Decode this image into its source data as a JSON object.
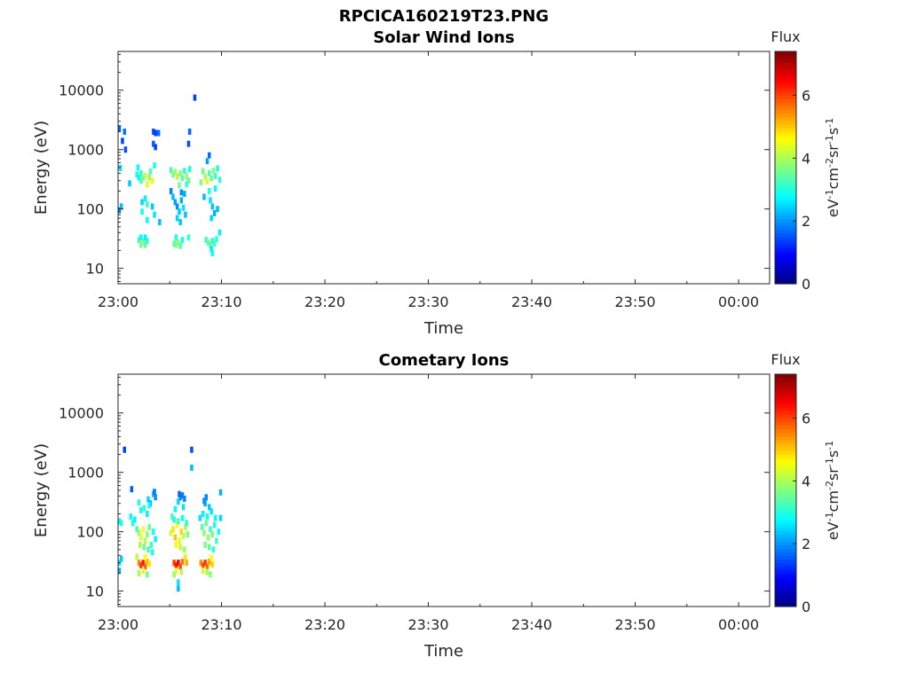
{
  "figure_title": "RPCICA160219T23.PNG",
  "colors": {
    "axis": "#262626",
    "background": "#ffffff"
  },
  "colorbar": {
    "label": "Flux",
    "ticks": [
      0,
      2,
      4,
      6
    ],
    "range": [
      0,
      7.4
    ],
    "colormap": "jet"
  },
  "chart_data": [
    {
      "type": "heatmap",
      "title": "Solar Wind Ions",
      "xlabel": "Time",
      "ylabel": "Energy (eV)",
      "xtick_labels": [
        "23:00",
        "23:10",
        "23:20",
        "23:30",
        "23:40",
        "23:50",
        "00:00"
      ],
      "xlim_minutes": [
        0,
        63
      ],
      "ylog": true,
      "ylim": [
        5.5,
        45000
      ],
      "ytick_labels": [
        "10",
        "100",
        "1000",
        "10000"
      ],
      "yticks": [
        10,
        100,
        1000,
        10000
      ],
      "grid": false,
      "cells": [
        [
          0.1,
          2300,
          1.6
        ],
        [
          0.6,
          2000,
          1.8
        ],
        [
          0.4,
          1400,
          1.4
        ],
        [
          0.7,
          1000,
          1.5
        ],
        [
          0.2,
          490,
          2.6
        ],
        [
          0.3,
          110,
          2.3
        ],
        [
          0.1,
          95,
          2.0
        ],
        [
          1.1,
          270,
          2.4
        ],
        [
          1.9,
          500,
          2.8
        ],
        [
          1.8,
          380,
          3.0
        ],
        [
          2.0,
          340,
          2.7
        ],
        [
          2.2,
          300,
          3.3
        ],
        [
          2.2,
          400,
          3.1
        ],
        [
          2.4,
          330,
          3.6
        ],
        [
          2.6,
          360,
          4.2
        ],
        [
          2.8,
          260,
          4.4
        ],
        [
          3.0,
          340,
          3.8
        ],
        [
          3.1,
          430,
          3.4
        ],
        [
          3.3,
          300,
          4.7
        ],
        [
          3.5,
          540,
          3.0
        ],
        [
          3.4,
          2000,
          1.5
        ],
        [
          3.6,
          1900,
          1.3
        ],
        [
          3.4,
          1250,
          1.6
        ],
        [
          3.6,
          1100,
          1.4
        ],
        [
          3.9,
          1900,
          1.7
        ],
        [
          2.3,
          130,
          2.5
        ],
        [
          2.3,
          90,
          2.9
        ],
        [
          2.6,
          150,
          2.7
        ],
        [
          2.8,
          120,
          3.2
        ],
        [
          2.8,
          65,
          2.8
        ],
        [
          3.3,
          110,
          2.4
        ],
        [
          3.5,
          80,
          2.6
        ],
        [
          2.0,
          30,
          3.2
        ],
        [
          2.2,
          25,
          3.6
        ],
        [
          2.4,
          28,
          3.9
        ],
        [
          2.6,
          25,
          3.5
        ],
        [
          2.8,
          29,
          3.1
        ],
        [
          2.6,
          33,
          2.7
        ],
        [
          2.2,
          33,
          2.8
        ],
        [
          4.0,
          60,
          2.3
        ],
        [
          5.1,
          450,
          3.3
        ],
        [
          5.3,
          380,
          3.7
        ],
        [
          5.5,
          420,
          3.9
        ],
        [
          5.7,
          350,
          4.1
        ],
        [
          6.0,
          400,
          3.7
        ],
        [
          6.2,
          330,
          3.4
        ],
        [
          6.4,
          440,
          3.1
        ],
        [
          6.6,
          360,
          3.9
        ],
        [
          6.8,
          300,
          3.5
        ],
        [
          6.9,
          470,
          3.0
        ],
        [
          6.6,
          260,
          3.2
        ],
        [
          5.9,
          250,
          3.6
        ],
        [
          5.3,
          160,
          2.3
        ],
        [
          5.5,
          130,
          2.1
        ],
        [
          5.7,
          110,
          2.0
        ],
        [
          5.9,
          90,
          2.4
        ],
        [
          6.1,
          140,
          2.2
        ],
        [
          6.3,
          105,
          2.6
        ],
        [
          6.5,
          80,
          2.3
        ],
        [
          5.7,
          70,
          2.5
        ],
        [
          6.0,
          60,
          2.4
        ],
        [
          6.4,
          180,
          2.2
        ],
        [
          5.1,
          200,
          1.9
        ],
        [
          6.1,
          190,
          2.0
        ],
        [
          5.4,
          26,
          3.3
        ],
        [
          5.6,
          25,
          3.7
        ],
        [
          5.8,
          27,
          3.9
        ],
        [
          6.0,
          24,
          3.4
        ],
        [
          6.2,
          30,
          2.9
        ],
        [
          5.6,
          33,
          3.0
        ],
        [
          6.8,
          33,
          3.2
        ],
        [
          6.9,
          2000,
          1.7
        ],
        [
          6.8,
          1250,
          1.5
        ],
        [
          7.4,
          7500,
          1.4
        ],
        [
          8.2,
          430,
          3.6
        ],
        [
          8.4,
          350,
          4.0
        ],
        [
          8.6,
          290,
          4.5
        ],
        [
          8.8,
          400,
          3.3
        ],
        [
          9.0,
          330,
          3.5
        ],
        [
          9.2,
          440,
          3.8
        ],
        [
          9.4,
          360,
          3.2
        ],
        [
          9.6,
          480,
          2.9
        ],
        [
          9.8,
          310,
          3.1
        ],
        [
          8.0,
          280,
          3.7
        ],
        [
          8.8,
          200,
          3.0
        ],
        [
          9.4,
          220,
          2.8
        ],
        [
          8.8,
          800,
          1.7
        ],
        [
          8.6,
          640,
          2.1
        ],
        [
          8.3,
          160,
          2.3
        ],
        [
          8.9,
          140,
          2.6
        ],
        [
          9.1,
          110,
          2.4
        ],
        [
          9.3,
          85,
          2.2
        ],
        [
          9.0,
          70,
          2.5
        ],
        [
          9.6,
          100,
          2.3
        ],
        [
          9.8,
          40,
          2.7
        ],
        [
          8.5,
          30,
          3.2
        ],
        [
          8.7,
          27,
          3.6
        ],
        [
          8.9,
          25,
          3.4
        ],
        [
          9.1,
          29,
          3.0
        ],
        [
          9.3,
          26,
          3.3
        ],
        [
          9.5,
          31,
          3.1
        ],
        [
          9.0,
          21,
          2.6
        ],
        [
          9.1,
          18,
          2.9
        ]
      ]
    },
    {
      "type": "heatmap",
      "title": "Cometary Ions",
      "xlabel": "Time",
      "ylabel": "Energy (eV)",
      "xtick_labels": [
        "23:00",
        "23:10",
        "23:20",
        "23:30",
        "23:40",
        "23:50",
        "00:00"
      ],
      "xlim_minutes": [
        0,
        63
      ],
      "ylog": true,
      "ylim": [
        5.5,
        45000
      ],
      "ytick_labels": [
        "10",
        "100",
        "1000",
        "10000"
      ],
      "yticks": [
        10,
        100,
        1000,
        10000
      ],
      "grid": false,
      "cells": [
        [
          0.6,
          2400,
          1.4
        ],
        [
          7.1,
          2400,
          1.5
        ],
        [
          7.1,
          1200,
          2.3
        ],
        [
          0.1,
          150,
          2.7
        ],
        [
          0.3,
          140,
          3.0
        ],
        [
          0.1,
          30,
          2.6
        ],
        [
          0.3,
          35,
          2.4
        ],
        [
          0.1,
          22,
          2.2
        ],
        [
          1.2,
          180,
          2.8
        ],
        [
          1.4,
          140,
          3.0
        ],
        [
          1.6,
          160,
          2.7
        ],
        [
          1.8,
          110,
          3.3
        ],
        [
          2.0,
          95,
          3.9
        ],
        [
          2.2,
          80,
          4.4
        ],
        [
          2.4,
          110,
          4.6
        ],
        [
          2.6,
          70,
          4.1
        ],
        [
          2.8,
          90,
          3.8
        ],
        [
          3.0,
          120,
          3.5
        ],
        [
          3.2,
          60,
          3.2
        ],
        [
          3.4,
          100,
          2.9
        ],
        [
          3.6,
          75,
          2.7
        ],
        [
          2.1,
          60,
          4.0
        ],
        [
          2.5,
          55,
          3.6
        ],
        [
          2.9,
          50,
          3.3
        ],
        [
          3.3,
          45,
          3.0
        ],
        [
          2.2,
          230,
          2.9
        ],
        [
          2.5,
          250,
          3.1
        ],
        [
          2.8,
          200,
          2.7
        ],
        [
          2.0,
          310,
          3.0
        ],
        [
          2.9,
          350,
          2.5
        ],
        [
          3.1,
          300,
          2.2
        ],
        [
          3.4,
          430,
          2.3
        ],
        [
          3.6,
          380,
          2.0
        ],
        [
          3.5,
          470,
          1.8
        ],
        [
          3.0,
          280,
          2.8
        ],
        [
          1.3,
          520,
          1.6
        ],
        [
          2.0,
          30,
          5.5
        ],
        [
          2.2,
          27,
          6.0
        ],
        [
          2.4,
          30,
          6.3
        ],
        [
          2.6,
          26,
          5.8
        ],
        [
          2.8,
          31,
          5.2
        ],
        [
          2.4,
          22,
          4.4
        ],
        [
          2.0,
          20,
          4.0
        ],
        [
          2.8,
          19,
          3.6
        ],
        [
          3.0,
          29,
          4.8
        ],
        [
          1.8,
          38,
          4.2
        ],
        [
          2.6,
          37,
          4.6
        ],
        [
          5.1,
          95,
          4.3
        ],
        [
          5.3,
          110,
          4.8
        ],
        [
          5.5,
          80,
          5.0
        ],
        [
          5.7,
          130,
          4.6
        ],
        [
          5.9,
          70,
          4.4
        ],
        [
          6.1,
          100,
          4.9
        ],
        [
          6.3,
          85,
          4.2
        ],
        [
          6.5,
          120,
          4.0
        ],
        [
          6.7,
          90,
          3.7
        ],
        [
          5.6,
          60,
          4.6
        ],
        [
          6.0,
          55,
          4.2
        ],
        [
          6.4,
          50,
          3.9
        ],
        [
          5.2,
          180,
          3.3
        ],
        [
          5.4,
          160,
          3.0
        ],
        [
          5.8,
          150,
          3.2
        ],
        [
          6.2,
          170,
          2.9
        ],
        [
          6.6,
          140,
          3.1
        ],
        [
          5.5,
          240,
          2.8
        ],
        [
          6.3,
          260,
          2.6
        ],
        [
          5.8,
          320,
          2.5
        ],
        [
          6.0,
          380,
          2.0
        ],
        [
          6.2,
          410,
          1.8
        ],
        [
          6.4,
          360,
          1.9
        ],
        [
          5.9,
          430,
          1.7
        ],
        [
          5.4,
          30,
          6.0
        ],
        [
          5.6,
          27,
          6.3
        ],
        [
          5.8,
          30,
          6.5
        ],
        [
          6.0,
          26,
          5.9
        ],
        [
          6.2,
          31,
          5.6
        ],
        [
          5.6,
          22,
          4.5
        ],
        [
          6.1,
          21,
          4.1
        ],
        [
          5.4,
          19,
          3.9
        ],
        [
          5.8,
          14,
          2.6
        ],
        [
          5.8,
          11,
          2.3
        ],
        [
          6.5,
          37,
          4.8
        ],
        [
          6.6,
          30,
          5.2
        ],
        [
          8.1,
          120,
          3.4
        ],
        [
          8.3,
          95,
          3.8
        ],
        [
          8.5,
          140,
          3.5
        ],
        [
          8.7,
          80,
          3.9
        ],
        [
          8.9,
          110,
          3.2
        ],
        [
          9.1,
          90,
          3.6
        ],
        [
          9.3,
          130,
          3.0
        ],
        [
          9.5,
          70,
          3.3
        ],
        [
          9.7,
          100,
          2.9
        ],
        [
          8.4,
          60,
          3.7
        ],
        [
          8.8,
          55,
          3.4
        ],
        [
          9.2,
          50,
          3.1
        ],
        [
          8.2,
          200,
          2.7
        ],
        [
          8.6,
          180,
          2.9
        ],
        [
          9.0,
          220,
          2.6
        ],
        [
          9.4,
          170,
          2.8
        ],
        [
          8.4,
          300,
          2.2
        ],
        [
          8.8,
          260,
          2.4
        ],
        [
          8.5,
          380,
          1.9
        ],
        [
          8.3,
          330,
          2.0
        ],
        [
          8.0,
          30,
          5.4
        ],
        [
          8.2,
          27,
          5.9
        ],
        [
          8.4,
          30,
          6.1
        ],
        [
          8.6,
          26,
          5.7
        ],
        [
          8.8,
          31,
          5.3
        ],
        [
          8.2,
          22,
          4.3
        ],
        [
          8.6,
          21,
          4.0
        ],
        [
          8.9,
          19,
          3.7
        ],
        [
          9.0,
          36,
          4.6
        ],
        [
          9.1,
          28,
          4.9
        ],
        [
          9.9,
          460,
          2.2
        ],
        [
          9.9,
          170,
          2.5
        ],
        [
          7.9,
          170,
          2.6
        ]
      ]
    }
  ]
}
